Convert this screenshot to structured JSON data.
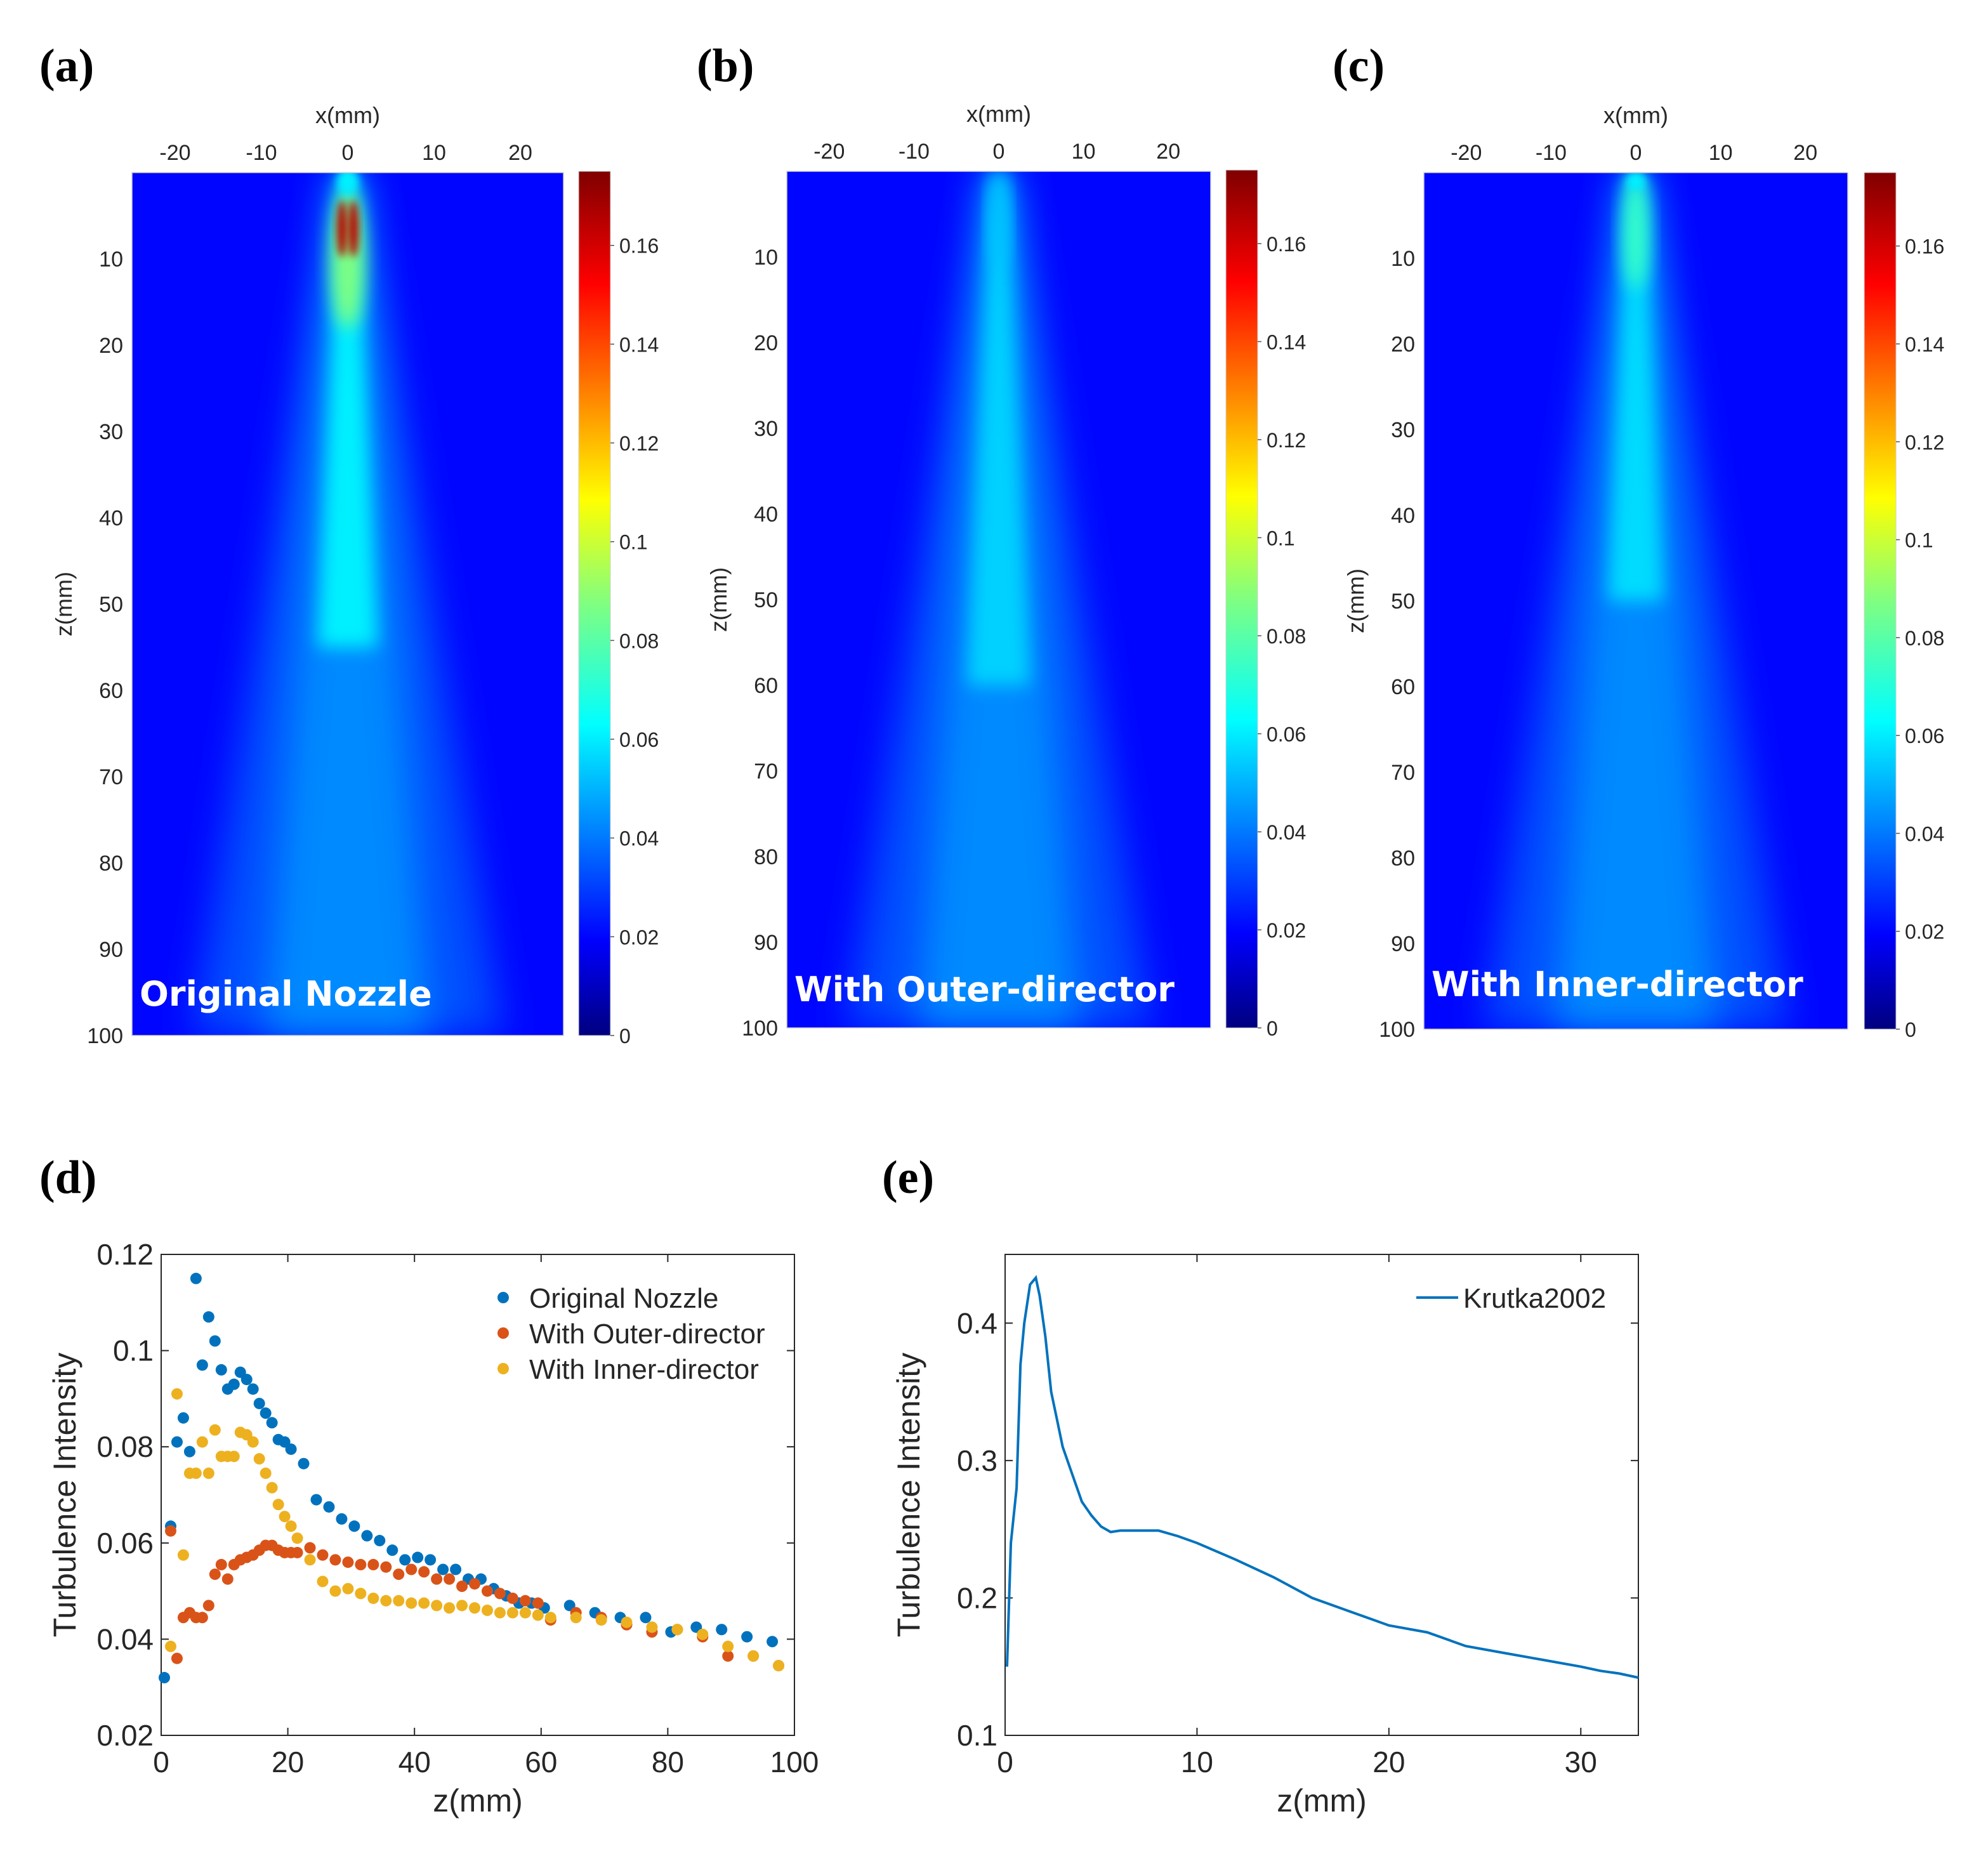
{
  "panel_labels": [
    "(a)",
    "(b)",
    "(c)",
    "(d)",
    "(e)"
  ],
  "colors": {
    "blue": "#0072BD",
    "orange": "#D95319",
    "yellow": "#EDB120",
    "jet_low": "#00007F",
    "jet_high": "#7F0000"
  },
  "chart_data": [
    {
      "type": "heatmap",
      "panel": "(a)",
      "title": "Original Nozzle",
      "xlabel": "x(mm)",
      "ylabel": "z(mm)",
      "xlim": [
        -25,
        25
      ],
      "ylim": [
        0,
        100
      ],
      "x_ticks": [
        -20,
        -10,
        0,
        10,
        20
      ],
      "x_tick_labels": [
        "-20",
        "-10",
        "0",
        "10",
        "20"
      ],
      "y_ticks": [
        10,
        20,
        30,
        40,
        50,
        60,
        70,
        80,
        90,
        100
      ],
      "y_tick_labels": [
        "10",
        "20",
        "30",
        "40",
        "50",
        "60",
        "70",
        "80",
        "90",
        "100"
      ],
      "colorbar": {
        "range": [
          0,
          0.175
        ],
        "ticks": [
          0,
          0.02,
          0.04,
          0.06,
          0.08,
          0.1,
          0.12,
          0.14,
          0.16
        ],
        "tick_labels": [
          "0",
          "0.02",
          "0.04",
          "0.06",
          "0.08",
          "0.1",
          "0.12",
          "0.14",
          "0.16"
        ]
      },
      "centerline_peak": 0.165,
      "core_length_mm": 9
    },
    {
      "type": "heatmap",
      "panel": "(b)",
      "title": "With Outer-director",
      "xlabel": "x(mm)",
      "ylabel": "z(mm)",
      "xlim": [
        -25,
        25
      ],
      "ylim": [
        0,
        100
      ],
      "x_ticks": [
        -20,
        -10,
        0,
        10,
        20
      ],
      "x_tick_labels": [
        "-20",
        "-10",
        "0",
        "10",
        "20"
      ],
      "y_ticks": [
        10,
        20,
        30,
        40,
        50,
        60,
        70,
        80,
        90,
        100
      ],
      "y_tick_labels": [
        "10",
        "20",
        "30",
        "40",
        "50",
        "60",
        "70",
        "80",
        "90",
        "100"
      ],
      "colorbar": {
        "range": [
          0,
          0.175
        ],
        "ticks": [
          0,
          0.02,
          0.04,
          0.06,
          0.08,
          0.1,
          0.12,
          0.14,
          0.16
        ],
        "tick_labels": [
          "0",
          "0.02",
          "0.04",
          "0.06",
          "0.08",
          "0.1",
          "0.12",
          "0.14",
          "0.16"
        ]
      },
      "centerline_peak": 0.055,
      "core_length_mm": 0
    },
    {
      "type": "heatmap",
      "panel": "(c)",
      "title": "With Inner-director",
      "xlabel": "x(mm)",
      "ylabel": "z(mm)",
      "xlim": [
        -25,
        25
      ],
      "ylim": [
        0,
        100
      ],
      "x_ticks": [
        -20,
        -10,
        0,
        10,
        20
      ],
      "x_tick_labels": [
        "-20",
        "-10",
        "0",
        "10",
        "20"
      ],
      "y_ticks": [
        10,
        20,
        30,
        40,
        50,
        60,
        70,
        80,
        90,
        100
      ],
      "y_tick_labels": [
        "10",
        "20",
        "30",
        "40",
        "50",
        "60",
        "70",
        "80",
        "90",
        "100"
      ],
      "colorbar": {
        "range": [
          0,
          0.175
        ],
        "ticks": [
          0,
          0.02,
          0.04,
          0.06,
          0.08,
          0.1,
          0.12,
          0.14,
          0.16
        ],
        "tick_labels": [
          "0",
          "0.02",
          "0.04",
          "0.06",
          "0.08",
          "0.1",
          "0.12",
          "0.14",
          "0.16"
        ]
      },
      "centerline_peak": 0.075,
      "core_length_mm": 6
    },
    {
      "type": "scatter",
      "panel": "(d)",
      "xlabel": "z(mm)",
      "ylabel": "Turbulence Intensity",
      "xlim": [
        0,
        100
      ],
      "ylim": [
        0.02,
        0.12
      ],
      "x_ticks": [
        0,
        20,
        40,
        60,
        80,
        100
      ],
      "x_tick_labels": [
        "0",
        "20",
        "40",
        "60",
        "80",
        "100"
      ],
      "y_ticks": [
        0.02,
        0.04,
        0.06,
        0.08,
        0.1,
        0.12
      ],
      "y_tick_labels": [
        "0.02",
        "0.04",
        "0.06",
        "0.08",
        "0.1",
        "0.12"
      ],
      "legend_position": "top-right",
      "series": [
        {
          "name": "Original Nozzle",
          "color": "#0072BD",
          "x": [
            0.5,
            1.5,
            2.5,
            3.5,
            4.5,
            5.5,
            6.5,
            7.5,
            8.5,
            9.5,
            10.5,
            11.5,
            12.5,
            13.5,
            14.5,
            15.5,
            16.5,
            17.5,
            18.5,
            19.5,
            20.5,
            22.5,
            24.5,
            26.5,
            28.5,
            30.5,
            32.5,
            34.5,
            36.5,
            38.5,
            40.5,
            42.5,
            44.5,
            46.5,
            48.5,
            50.5,
            52.5,
            54.5,
            56.5,
            58.5,
            60.5,
            64.5,
            68.5,
            72.5,
            76.5,
            80.5,
            84.5,
            88.5,
            92.5,
            96.5
          ],
          "y": [
            0.032,
            0.0635,
            0.081,
            0.086,
            0.079,
            0.115,
            0.097,
            0.107,
            0.102,
            0.096,
            0.092,
            0.093,
            0.0955,
            0.094,
            0.092,
            0.089,
            0.087,
            0.085,
            0.0815,
            0.081,
            0.0795,
            0.0765,
            0.069,
            0.0675,
            0.065,
            0.0635,
            0.0615,
            0.0605,
            0.0585,
            0.0565,
            0.057,
            0.0565,
            0.0545,
            0.0545,
            0.0525,
            0.0525,
            0.0505,
            0.049,
            0.0475,
            0.0475,
            0.0465,
            0.047,
            0.0455,
            0.0445,
            0.0445,
            0.0415,
            0.0425,
            0.042,
            0.0405,
            0.0395
          ]
        },
        {
          "name": "With Outer-director",
          "color": "#D95319",
          "x": [
            1.5,
            2.5,
            3.5,
            4.5,
            5.5,
            6.5,
            7.5,
            8.5,
            9.5,
            10.5,
            11.5,
            12.5,
            13.5,
            14.5,
            15.5,
            16.5,
            17.5,
            18.5,
            19.5,
            20.5,
            21.5,
            23.5,
            25.5,
            27.5,
            29.5,
            31.5,
            33.5,
            35.5,
            37.5,
            39.5,
            41.5,
            43.5,
            45.5,
            47.5,
            49.5,
            51.5,
            53.5,
            55.5,
            57.5,
            59.5,
            61.5,
            65.5,
            69.5,
            73.5,
            77.5,
            81.5,
            85.5,
            89.5,
            93.5,
            97.5
          ],
          "y": [
            0.0625,
            0.036,
            0.0445,
            0.0455,
            0.0445,
            0.0445,
            0.047,
            0.0535,
            0.0555,
            0.0525,
            0.0555,
            0.0565,
            0.057,
            0.0575,
            0.0585,
            0.0595,
            0.0595,
            0.0585,
            0.058,
            0.058,
            0.058,
            0.059,
            0.0575,
            0.0565,
            0.056,
            0.0555,
            0.0555,
            0.055,
            0.0535,
            0.0545,
            0.054,
            0.0525,
            0.0525,
            0.051,
            0.0515,
            0.05,
            0.0495,
            0.0485,
            0.048,
            0.0475,
            0.044,
            0.0455,
            0.0445,
            0.043,
            0.0415,
            0.042,
            0.0405,
            0.0365,
            0.0365,
            0.0345
          ]
        },
        {
          "name": "With Inner-director",
          "color": "#EDB120",
          "x": [
            1.5,
            2.5,
            3.5,
            4.5,
            5.5,
            6.5,
            7.5,
            8.5,
            9.5,
            10.5,
            11.5,
            12.5,
            13.5,
            14.5,
            15.5,
            16.5,
            17.5,
            18.5,
            19.5,
            20.5,
            21.5,
            23.5,
            25.5,
            27.5,
            29.5,
            31.5,
            33.5,
            35.5,
            37.5,
            39.5,
            41.5,
            43.5,
            45.5,
            47.5,
            49.5,
            51.5,
            53.5,
            55.5,
            57.5,
            59.5,
            61.5,
            65.5,
            69.5,
            73.5,
            77.5,
            81.5,
            85.5,
            89.5,
            93.5,
            97.5
          ],
          "y": [
            0.0385,
            0.091,
            0.0575,
            0.0745,
            0.0745,
            0.081,
            0.0745,
            0.0835,
            0.078,
            0.078,
            0.078,
            0.083,
            0.0825,
            0.081,
            0.0775,
            0.0745,
            0.0715,
            0.068,
            0.0655,
            0.0635,
            0.061,
            0.0565,
            0.052,
            0.05,
            0.0505,
            0.0495,
            0.0485,
            0.048,
            0.048,
            0.0475,
            0.0475,
            0.047,
            0.0465,
            0.047,
            0.0465,
            0.046,
            0.0455,
            0.0455,
            0.0455,
            0.045,
            0.0445,
            0.0445,
            0.044,
            0.0435,
            0.0425,
            0.042,
            0.041,
            0.0385,
            0.0365,
            0.0345
          ]
        }
      ]
    },
    {
      "type": "line",
      "panel": "(e)",
      "xlabel": "z(mm)",
      "ylabel": "Turbulence Intensity",
      "xlim": [
        0,
        33
      ],
      "ylim": [
        0.1,
        0.45
      ],
      "x_ticks": [
        0,
        10,
        20,
        30
      ],
      "x_tick_labels": [
        "0",
        "10",
        "20",
        "30"
      ],
      "y_ticks": [
        0.1,
        0.2,
        0.3,
        0.4
      ],
      "y_tick_labels": [
        "0.1",
        "0.2",
        "0.3",
        "0.4"
      ],
      "legend_position": "top-right",
      "series": [
        {
          "name": "Krutka2002",
          "color": "#0072BD",
          "x": [
            0.1,
            0.3,
            0.6,
            0.8,
            1.0,
            1.3,
            1.6,
            1.8,
            2.1,
            2.4,
            2.7,
            3.0,
            3.5,
            4.0,
            4.5,
            5.0,
            5.5,
            6.0,
            7.0,
            8.0,
            9.0,
            10.0,
            12.0,
            14.0,
            16.0,
            18.0,
            20.0,
            22.0,
            24.0,
            26.0,
            28.0,
            30.0,
            31.0,
            32.0,
            33.0
          ],
          "y": [
            0.15,
            0.24,
            0.28,
            0.37,
            0.4,
            0.428,
            0.433,
            0.42,
            0.39,
            0.35,
            0.33,
            0.31,
            0.29,
            0.27,
            0.26,
            0.252,
            0.248,
            0.249,
            0.249,
            0.249,
            0.245,
            0.24,
            0.228,
            0.215,
            0.2,
            0.19,
            0.18,
            0.175,
            0.165,
            0.16,
            0.155,
            0.15,
            0.147,
            0.145,
            0.142
          ]
        }
      ]
    }
  ]
}
